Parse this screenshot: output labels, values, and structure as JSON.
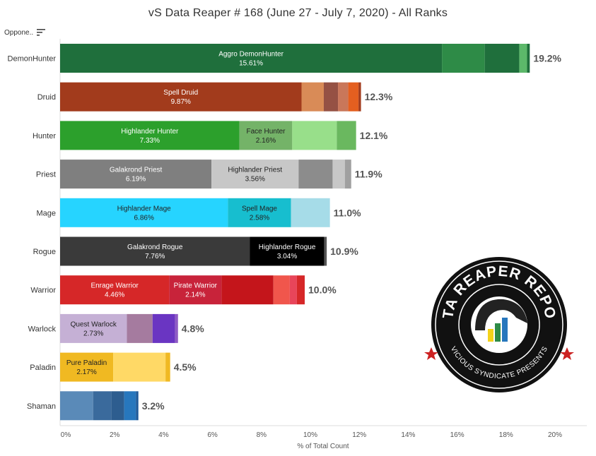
{
  "title": "vS Data Reaper # 168 (June 27 - July 7, 2020) - All Ranks",
  "sort_header": "Oppone..",
  "logo": {
    "main_text": "DATA REAPER REPORT",
    "sub_text": "VICIOUS SYNDICATE PRESENTS"
  },
  "chart_data": {
    "type": "bar",
    "orientation": "horizontal",
    "stacked": true,
    "xlabel": "% of Total Count",
    "xlim": [
      0,
      21.5
    ],
    "xticks": [
      "0%",
      "2%",
      "4%",
      "6%",
      "8%",
      "10%",
      "12%",
      "14%",
      "16%",
      "18%",
      "20%"
    ],
    "grid": false,
    "rows": [
      {
        "class": "DemonHunter",
        "total": 19.2,
        "total_label": "19.2%",
        "segments": [
          {
            "name": "Aggro DemonHunter",
            "value": 15.61,
            "label_value": "15.61%",
            "color": "#1f6f3c",
            "text_color": "#ffffff"
          },
          {
            "value": 1.75,
            "color": "#2e8b47"
          },
          {
            "value": 1.41,
            "color": "#1f6f3c"
          },
          {
            "value": 0.32,
            "color": "#5cb86a"
          },
          {
            "value": 0.11,
            "color": "#1f6f3c"
          }
        ]
      },
      {
        "class": "Druid",
        "total": 12.3,
        "total_label": "12.3%",
        "segments": [
          {
            "name": "Spell Druid",
            "value": 9.87,
            "label_value": "9.87%",
            "color": "#a23b1c",
            "text_color": "#ffffff"
          },
          {
            "value": 0.91,
            "color": "#d98b57"
          },
          {
            "value": 0.58,
            "color": "#955144"
          },
          {
            "value": 0.42,
            "color": "#c9775a"
          },
          {
            "value": 0.42,
            "color": "#e45f20"
          },
          {
            "value": 0.1,
            "color": "#a23b1c"
          }
        ]
      },
      {
        "class": "Hunter",
        "total": 12.1,
        "total_label": "12.1%",
        "segments": [
          {
            "name": "Highlander Hunter",
            "value": 7.33,
            "label_value": "7.33%",
            "color": "#2ca02c",
            "text_color": "#ffffff"
          },
          {
            "name": "Face Hunter",
            "value": 2.16,
            "label_value": "2.16%",
            "color": "#74b368",
            "text_color": "#222222"
          },
          {
            "value": 1.82,
            "color": "#98df8a"
          },
          {
            "value": 0.79,
            "color": "#6ab85f"
          }
        ]
      },
      {
        "class": "Priest",
        "total": 11.9,
        "total_label": "11.9%",
        "segments": [
          {
            "name": "Galakrond Priest",
            "value": 6.19,
            "label_value": "6.19%",
            "color": "#7f7f7f",
            "text_color": "#ffffff"
          },
          {
            "name": "Highlander Priest",
            "value": 3.56,
            "label_value": "3.56%",
            "color": "#c7c7c7",
            "text_color": "#222222"
          },
          {
            "value": 1.39,
            "color": "#8c8c8c"
          },
          {
            "value": 0.5,
            "color": "#c7c7c7"
          },
          {
            "value": 0.26,
            "color": "#a0a0a0"
          }
        ]
      },
      {
        "class": "Mage",
        "total": 11.0,
        "total_label": "11.0%",
        "segments": [
          {
            "name": "Highlander Mage",
            "value": 6.86,
            "label_value": "6.86%",
            "color": "#26d4ff",
            "text_color": "#222222"
          },
          {
            "name": "Spell Mage",
            "value": 2.58,
            "label_value": "2.58%",
            "color": "#17becf",
            "text_color": "#222222"
          },
          {
            "value": 1.59,
            "color": "#a6dce8"
          }
        ]
      },
      {
        "class": "Rogue",
        "total": 10.9,
        "total_label": "10.9%",
        "segments": [
          {
            "name": "Galakrond Rogue",
            "value": 7.76,
            "label_value": "7.76%",
            "color": "#3a3a3a",
            "text_color": "#ffffff"
          },
          {
            "name": "Highlander Rogue",
            "value": 3.04,
            "label_value": "3.04%",
            "color": "#000000",
            "text_color": "#ffffff"
          },
          {
            "value": 0.1,
            "color": "#555555"
          }
        ]
      },
      {
        "class": "Warrior",
        "total": 10.0,
        "total_label": "10.0%",
        "segments": [
          {
            "name": "Enrage Warrior",
            "value": 4.46,
            "label_value": "4.46%",
            "color": "#d62728",
            "text_color": "#ffffff"
          },
          {
            "name": "Pirate Warrior",
            "value": 2.14,
            "label_value": "2.14%",
            "color": "#c8233a",
            "text_color": "#ffffff"
          },
          {
            "value": 2.12,
            "color": "#c4151b"
          },
          {
            "value": 0.67,
            "color": "#f0564c"
          },
          {
            "value": 0.29,
            "color": "#e8455a"
          },
          {
            "value": 0.32,
            "color": "#d62728"
          }
        ]
      },
      {
        "class": "Warlock",
        "total": 4.8,
        "total_label": "4.8%",
        "segments": [
          {
            "name": "Quest Warlock",
            "value": 2.73,
            "label_value": "2.73%",
            "color": "#c5b0d5",
            "text_color": "#222222"
          },
          {
            "value": 1.05,
            "color": "#a57b9f"
          },
          {
            "value": 0.92,
            "color": "#6a35c2"
          },
          {
            "value": 0.12,
            "color": "#8f5bc4"
          }
        ]
      },
      {
        "class": "Paladin",
        "total": 4.5,
        "total_label": "4.5%",
        "segments": [
          {
            "name": "Pure Paladin",
            "value": 2.17,
            "label_value": "2.17%",
            "color": "#f0b922",
            "text_color": "#222222"
          },
          {
            "value": 2.14,
            "color": "#ffd966"
          },
          {
            "value": 0.19,
            "color": "#f0b922"
          }
        ]
      },
      {
        "class": "Shaman",
        "total": 3.2,
        "total_label": "3.2%",
        "segments": [
          {
            "value": 1.35,
            "color": "#5a8ab8"
          },
          {
            "value": 0.74,
            "color": "#3a6a9c"
          },
          {
            "value": 0.53,
            "color": "#2d5d8f"
          },
          {
            "value": 0.48,
            "color": "#2777bd"
          },
          {
            "value": 0.1,
            "color": "#1f5a99"
          }
        ]
      }
    ]
  }
}
